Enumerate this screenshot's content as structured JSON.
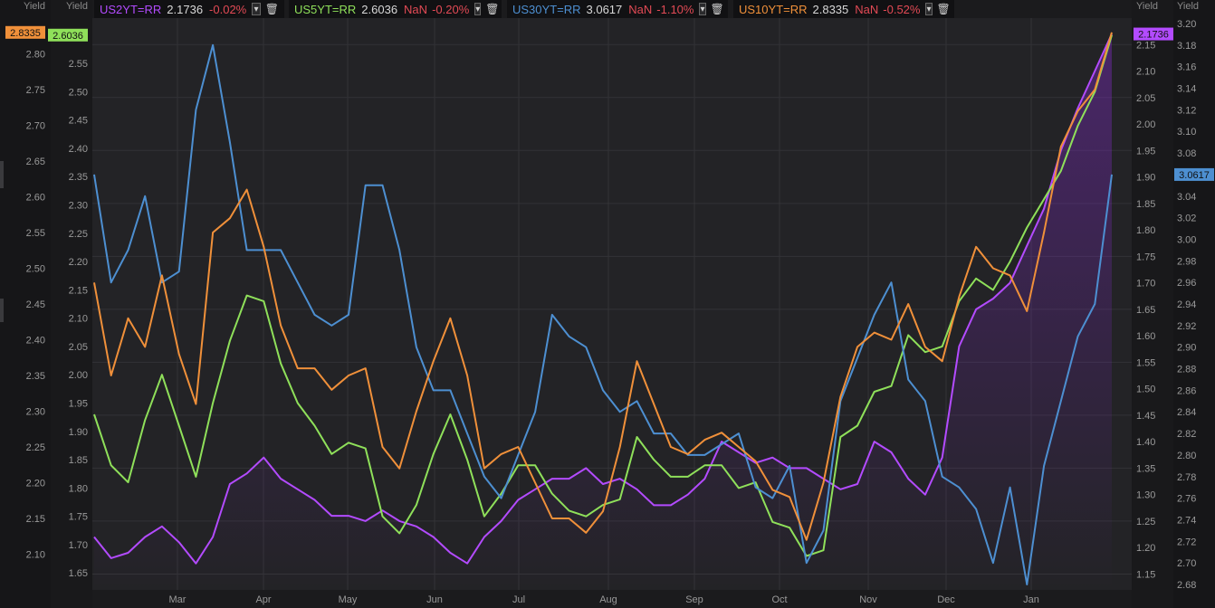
{
  "legend": [
    {
      "name": "US2YT=RR",
      "value": "2.1736",
      "nan": "",
      "change": "-0.02%",
      "color": "#b34bff"
    },
    {
      "name": "US5YT=RR",
      "value": "2.6036",
      "nan": "NaN",
      "change": "-0.20%",
      "color": "#8fe05a"
    },
    {
      "name": "US30YT=RR",
      "value": "3.0617",
      "nan": "NaN",
      "change": "-1.10%",
      "color": "#4d8fd1"
    },
    {
      "name": "US10YT=RR",
      "value": "2.8335",
      "nan": "NaN",
      "change": "-0.52%",
      "color": "#f0903a"
    }
  ],
  "icons": {
    "dropdown": "chevron-down-icon",
    "delete": "trash-icon"
  },
  "chart_data": {
    "type": "line",
    "x_tick_labels": [
      "Mar",
      "Apr",
      "May",
      "Jun",
      "Jul",
      "Aug",
      "Sep",
      "Oct",
      "Nov",
      "Dec",
      "Jan"
    ],
    "grid": true,
    "axes": {
      "axis1": {
        "label": "Yield",
        "side": "left-outer",
        "ylim": [
          2.05,
          2.85
        ],
        "ticks": [
          "2.10",
          "2.15",
          "2.20",
          "2.25",
          "2.30",
          "2.35",
          "2.40",
          "2.45",
          "2.50",
          "2.55",
          "2.60",
          "2.65",
          "2.70",
          "2.75",
          "2.80"
        ],
        "badge": "2.8335",
        "badge_color": "#f0903a"
      },
      "axis2": {
        "label": "Yield",
        "side": "left-inner",
        "ylim": [
          1.62,
          2.63
        ],
        "ticks": [
          "1.65",
          "1.70",
          "1.75",
          "1.80",
          "1.85",
          "1.90",
          "1.95",
          "2.00",
          "2.05",
          "2.10",
          "2.15",
          "2.20",
          "2.25",
          "2.30",
          "2.35",
          "2.40",
          "2.45",
          "2.50",
          "2.55"
        ],
        "badge": "2.6036",
        "badge_color": "#8fe05a"
      },
      "axis3": {
        "label": "Yield",
        "side": "right-inner",
        "ylim": [
          1.12,
          2.2
        ],
        "ticks": [
          "1.15",
          "1.20",
          "1.25",
          "1.30",
          "1.35",
          "1.40",
          "1.45",
          "1.50",
          "1.55",
          "1.60",
          "1.65",
          "1.70",
          "1.75",
          "1.80",
          "1.85",
          "1.90",
          "1.95",
          "2.00",
          "2.05",
          "2.10",
          "2.15"
        ],
        "badge": "2.1736",
        "badge_color": "#b34bff"
      },
      "axis4": {
        "label": "Yield",
        "side": "right-outer",
        "ylim": [
          2.675,
          3.205
        ],
        "ticks": [
          "2.68",
          "2.70",
          "2.72",
          "2.74",
          "2.76",
          "2.78",
          "2.80",
          "2.82",
          "2.84",
          "2.86",
          "2.88",
          "2.90",
          "2.92",
          "2.94",
          "2.96",
          "2.98",
          "3.00",
          "3.02",
          "3.04",
          "3.06",
          "3.08",
          "3.10",
          "3.12",
          "3.14",
          "3.16",
          "3.18",
          "3.20"
        ],
        "badge": "3.0617",
        "badge_color": "#4d8fd1"
      }
    },
    "series": [
      {
        "name": "US2YT=RR",
        "axis": "axis3",
        "color": "#b34bff",
        "filled": true,
        "values": [
          1.22,
          1.18,
          1.19,
          1.22,
          1.24,
          1.21,
          1.17,
          1.22,
          1.32,
          1.34,
          1.37,
          1.33,
          1.31,
          1.29,
          1.26,
          1.26,
          1.25,
          1.27,
          1.25,
          1.24,
          1.22,
          1.19,
          1.17,
          1.22,
          1.25,
          1.29,
          1.31,
          1.33,
          1.33,
          1.35,
          1.32,
          1.33,
          1.31,
          1.28,
          1.28,
          1.3,
          1.33,
          1.4,
          1.38,
          1.36,
          1.37,
          1.35,
          1.35,
          1.33,
          1.31,
          1.32,
          1.4,
          1.38,
          1.33,
          1.3,
          1.37,
          1.58,
          1.65,
          1.67,
          1.7,
          1.77,
          1.84,
          1.95,
          2.03,
          2.1,
          2.17
        ]
      },
      {
        "name": "US5YT=RR",
        "axis": "axis2",
        "color": "#8fe05a",
        "filled": false,
        "values": [
          1.93,
          1.84,
          1.81,
          1.92,
          2.0,
          1.91,
          1.82,
          1.95,
          2.06,
          2.14,
          2.13,
          2.02,
          1.95,
          1.91,
          1.86,
          1.88,
          1.87,
          1.75,
          1.72,
          1.77,
          1.86,
          1.93,
          1.85,
          1.75,
          1.79,
          1.84,
          1.84,
          1.79,
          1.76,
          1.75,
          1.77,
          1.78,
          1.89,
          1.85,
          1.82,
          1.82,
          1.84,
          1.84,
          1.8,
          1.81,
          1.74,
          1.73,
          1.68,
          1.69,
          1.89,
          1.91,
          1.97,
          1.98,
          2.07,
          2.04,
          2.05,
          2.13,
          2.17,
          2.15,
          2.2,
          2.26,
          2.31,
          2.36,
          2.44,
          2.5,
          2.6
        ]
      },
      {
        "name": "US30YT=RR",
        "axis": "axis4",
        "color": "#4d8fd1",
        "filled": false,
        "values": [
          3.06,
          2.96,
          2.99,
          3.04,
          2.96,
          2.97,
          3.12,
          3.18,
          3.09,
          2.99,
          2.99,
          2.99,
          2.96,
          2.93,
          2.92,
          2.93,
          3.05,
          3.05,
          2.99,
          2.9,
          2.86,
          2.86,
          2.82,
          2.78,
          2.76,
          2.8,
          2.84,
          2.93,
          2.91,
          2.9,
          2.86,
          2.84,
          2.85,
          2.82,
          2.82,
          2.8,
          2.8,
          2.81,
          2.82,
          2.77,
          2.76,
          2.79,
          2.7,
          2.73,
          2.85,
          2.89,
          2.93,
          2.96,
          2.87,
          2.85,
          2.78,
          2.77,
          2.75,
          2.7,
          2.77,
          2.68,
          2.79,
          2.85,
          2.91,
          2.94,
          3.06
        ]
      },
      {
        "name": "US10YT=RR",
        "axis": "axis1",
        "color": "#f0903a",
        "filled": false,
        "values": [
          2.48,
          2.35,
          2.43,
          2.39,
          2.49,
          2.38,
          2.31,
          2.55,
          2.57,
          2.61,
          2.53,
          2.42,
          2.36,
          2.36,
          2.33,
          2.35,
          2.36,
          2.25,
          2.22,
          2.3,
          2.37,
          2.43,
          2.35,
          2.22,
          2.24,
          2.25,
          2.2,
          2.15,
          2.15,
          2.13,
          2.16,
          2.25,
          2.37,
          2.31,
          2.25,
          2.24,
          2.26,
          2.27,
          2.25,
          2.23,
          2.19,
          2.18,
          2.12,
          2.2,
          2.32,
          2.39,
          2.41,
          2.4,
          2.45,
          2.39,
          2.37,
          2.46,
          2.53,
          2.5,
          2.49,
          2.44,
          2.55,
          2.67,
          2.72,
          2.75,
          2.83
        ]
      }
    ]
  }
}
